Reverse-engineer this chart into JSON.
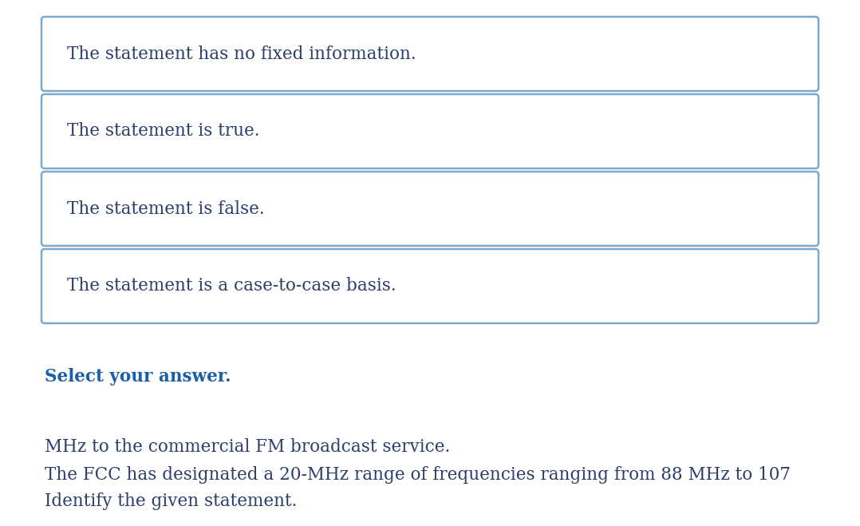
{
  "background_color": "#ffffff",
  "question_line1": "Identify the given statement.",
  "question_line2": "The FCC has designated a 20-MHz range of frequencies ranging from 88 MHz to 107",
  "question_line3": "MHz to the commercial FM broadcast service.",
  "select_label": "Select your answer.",
  "options": [
    "The statement is a case-to-case basis.",
    "The statement is false.",
    "The statement is true.",
    "The statement has no fixed information."
  ],
  "question_text_color": "#2c3e6b",
  "select_label_color": "#1a5fa8",
  "option_text_color": "#2c3e6b",
  "box_border_color": "#7ea8c9",
  "box_fill_color": "#ffffff",
  "question_fontsize": 15.5,
  "select_fontsize": 15.5,
  "option_fontsize": 15.5,
  "fig_width": 10.78,
  "fig_height": 6.59,
  "dpi": 100
}
